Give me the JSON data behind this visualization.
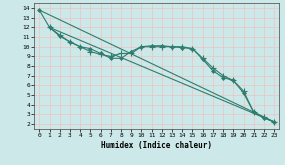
{
  "xlabel": "Humidex (Indice chaleur)",
  "xlim": [
    -0.5,
    23.5
  ],
  "ylim": [
    1.5,
    14.5
  ],
  "xticks": [
    0,
    1,
    2,
    3,
    4,
    5,
    6,
    7,
    8,
    9,
    10,
    11,
    12,
    13,
    14,
    15,
    16,
    17,
    18,
    19,
    20,
    21,
    22,
    23
  ],
  "yticks": [
    2,
    3,
    4,
    5,
    6,
    7,
    8,
    9,
    10,
    11,
    12,
    13,
    14
  ],
  "bg_color": "#cde8e8",
  "grid_color": "#e8c8c8",
  "line_color": "#2e7d6e",
  "line1": {
    "x": [
      0,
      1,
      2,
      3,
      4,
      5,
      6,
      7,
      8,
      9,
      10,
      11,
      12,
      13,
      14,
      15,
      16,
      17,
      18,
      19,
      20,
      21,
      22,
      23
    ],
    "y": [
      13.8,
      12.0,
      11.1,
      10.5,
      10.0,
      9.8,
      9.3,
      8.8,
      8.8,
      9.5,
      10.0,
      10.1,
      10.1,
      10.0,
      9.9,
      9.8,
      8.7,
      7.5,
      6.8,
      6.5,
      5.2,
      3.2,
      2.6,
      2.2
    ]
  },
  "line2": {
    "x": [
      1,
      2,
      3,
      4,
      5,
      6,
      7,
      8,
      9,
      10,
      11,
      12,
      13,
      14,
      15,
      16,
      17,
      18,
      19,
      20,
      21,
      22,
      23
    ],
    "y": [
      12.0,
      11.2,
      10.5,
      10.0,
      9.5,
      9.2,
      9.0,
      9.3,
      9.3,
      10.0,
      10.0,
      10.0,
      10.0,
      10.0,
      9.8,
      8.8,
      7.8,
      7.0,
      6.5,
      5.4,
      3.2,
      2.7,
      2.2
    ]
  },
  "line3": {
    "x": [
      0,
      23
    ],
    "y": [
      13.8,
      2.2
    ]
  },
  "line4": {
    "x": [
      1,
      23
    ],
    "y": [
      12.0,
      2.2
    ]
  }
}
